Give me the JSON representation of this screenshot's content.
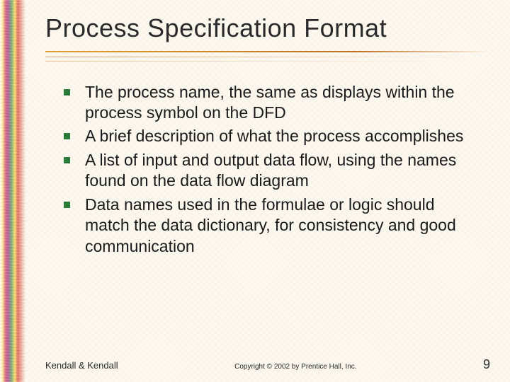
{
  "title": "Process Specification Format",
  "bullets": [
    "The process name, the same as displays within the process symbol on the DFD",
    "A brief description of what the process accomplishes",
    "A list of input and output data flow, using the names found on the data flow diagram",
    "Data names used in the formulae or logic should match the data dictionary, for consistency and good communication"
  ],
  "footer": {
    "author": "Kendall & Kendall",
    "copyright": "Copyright © 2002 by Prentice Hall, Inc.",
    "page": "9"
  },
  "colors": {
    "bullet": "#2a7a3a",
    "rule": "#c07020",
    "background": "#fdf8f0",
    "text": "#1a1a1a",
    "title": "#2a2a2a"
  }
}
